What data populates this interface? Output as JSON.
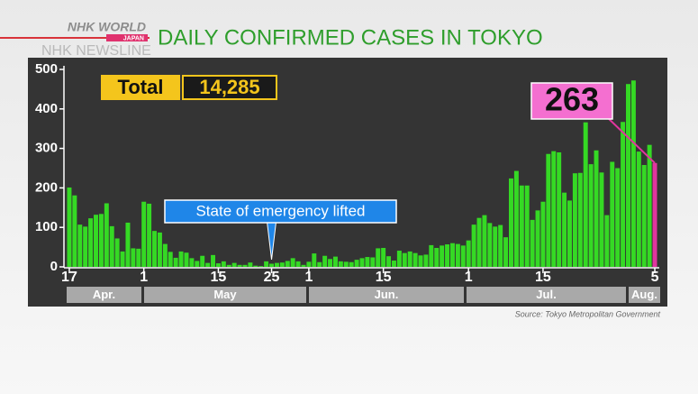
{
  "branding": {
    "logo": "NHK WORLD",
    "logo_sub": "JAPAN",
    "program": "NHK NEWSLINE"
  },
  "chart_data": {
    "type": "bar",
    "title": "DAILY CONFIRMED CASES IN TOKYO",
    "source": "Source: Tokyo Metropolitan Government",
    "total": {
      "label": "Total",
      "value": 14285,
      "value_label": "14,285"
    },
    "annotation": "State of emergency lifted",
    "months": [
      "Apr.",
      "May",
      "Jun.",
      "Jul.",
      "Aug."
    ],
    "categories": [
      "17",
      null,
      null,
      null,
      null,
      null,
      null,
      null,
      null,
      null,
      null,
      null,
      null,
      null,
      "1",
      null,
      null,
      null,
      null,
      null,
      null,
      null,
      null,
      null,
      null,
      null,
      null,
      null,
      "15",
      null,
      null,
      null,
      null,
      null,
      null,
      null,
      null,
      null,
      "25",
      null,
      null,
      null,
      null,
      null,
      null,
      "1",
      null,
      null,
      null,
      null,
      null,
      null,
      null,
      null,
      null,
      null,
      null,
      null,
      null,
      "15",
      null,
      null,
      null,
      null,
      null,
      null,
      null,
      null,
      null,
      null,
      null,
      null,
      null,
      null,
      null,
      "1",
      null,
      null,
      null,
      null,
      null,
      null,
      null,
      null,
      null,
      null,
      null,
      null,
      null,
      "15",
      null,
      null,
      null,
      null,
      null,
      null,
      null,
      null,
      null,
      null,
      null,
      null,
      null,
      null,
      null,
      null,
      null,
      null,
      null,
      null,
      "5"
    ],
    "values": [
      201,
      181,
      107,
      102,
      123,
      132,
      134,
      161,
      103,
      72,
      39,
      112,
      47,
      46,
      165,
      160,
      91,
      87,
      58,
      38,
      23,
      39,
      36,
      22,
      15,
      28,
      10,
      30,
      9,
      14,
      5,
      10,
      5,
      5,
      11,
      3,
      2,
      14,
      8,
      10,
      11,
      15,
      22,
      14,
      5,
      13,
      34,
      12,
      28,
      20,
      26,
      14,
      13,
      12,
      18,
      22,
      25,
      24,
      47,
      48,
      27,
      16,
      41,
      35,
      39,
      35,
      29,
      31,
      55,
      48,
      54,
      57,
      60,
      58,
      54,
      67,
      107,
      124,
      131,
      111,
      102,
      106,
      75,
      224,
      243,
      206,
      206,
      119,
      143,
      165,
      286,
      293,
      290,
      188,
      168,
      237,
      238,
      366,
      260,
      295,
      239,
      131,
      266,
      250,
      367,
      463,
      472,
      292,
      258,
      309,
      263
    ],
    "color": "#35d924",
    "last_color": "#e2359e",
    "ylim": [
      0,
      500
    ],
    "yticks": [
      0,
      100,
      200,
      300,
      400,
      500
    ],
    "grid": false
  }
}
